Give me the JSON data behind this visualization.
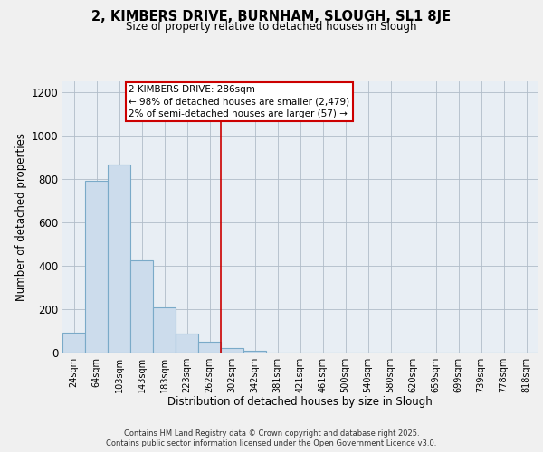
{
  "title": "2, KIMBERS DRIVE, BURNHAM, SLOUGH, SL1 8JE",
  "subtitle": "Size of property relative to detached houses in Slough",
  "xlabel": "Distribution of detached houses by size in Slough",
  "ylabel": "Number of detached properties",
  "bar_labels": [
    "24sqm",
    "64sqm",
    "103sqm",
    "143sqm",
    "183sqm",
    "223sqm",
    "262sqm",
    "302sqm",
    "342sqm",
    "381sqm",
    "421sqm",
    "461sqm",
    "500sqm",
    "540sqm",
    "580sqm",
    "620sqm",
    "659sqm",
    "699sqm",
    "739sqm",
    "778sqm",
    "818sqm"
  ],
  "bar_values": [
    90,
    790,
    868,
    425,
    210,
    88,
    52,
    20,
    8,
    2,
    0,
    0,
    0,
    0,
    0,
    0,
    0,
    0,
    0,
    0,
    0
  ],
  "bar_color": "#ccdcec",
  "bar_edge_color": "#7aaac8",
  "vline_x": 7.0,
  "vline_color": "#cc0000",
  "annotation_line1": "2 KIMBERS DRIVE: 286sqm",
  "annotation_line2": "← 98% of detached houses are smaller (2,479)",
  "annotation_line3": "2% of semi-detached houses are larger (57) →",
  "ylim": [
    0,
    1250
  ],
  "yticks": [
    0,
    200,
    400,
    600,
    800,
    1000,
    1200
  ],
  "background_color": "#f0f0f0",
  "plot_bg_color": "#e8eef4",
  "grid_color": "#b0bcc8",
  "footer_line1": "Contains HM Land Registry data © Crown copyright and database right 2025.",
  "footer_line2": "Contains public sector information licensed under the Open Government Licence v3.0."
}
